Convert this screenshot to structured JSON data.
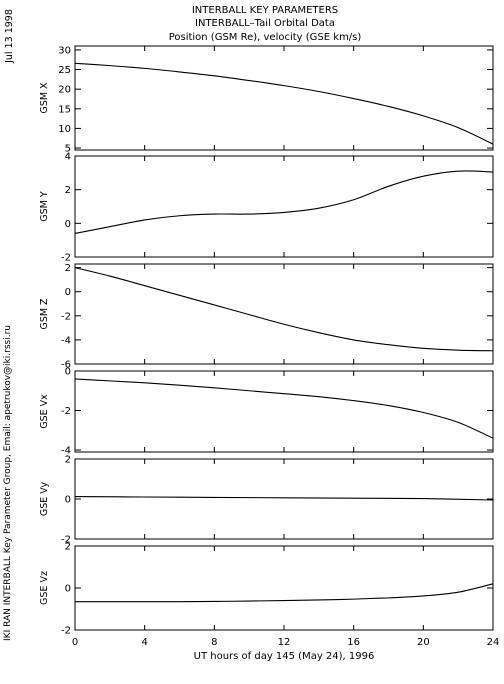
{
  "title_lines": [
    "INTERBALL KEY PARAMETERS",
    "INTERBALL–Tail Orbital Data",
    "Position (GSM Re), velocity (GSE km/s)"
  ],
  "side_labels": {
    "date": "Jul 13 1998",
    "credit": "IKI RAN INTERBALL Key Parameter Group, Email: apetrukov@iki.rssi.ru"
  },
  "chart_data": {
    "type": "line",
    "xlabel": "UT hours of day 145 (May 24), 1996",
    "xlim": [
      0,
      24
    ],
    "xticks": [
      0,
      4,
      8,
      12,
      16,
      20,
      24
    ],
    "grid": false,
    "panels": [
      {
        "ylabel": "GSM X",
        "ylim": [
          4.5,
          31
        ],
        "yticks": [
          5,
          10,
          15,
          20,
          25,
          30
        ],
        "series": [
          {
            "x": [
              0,
              2,
              4,
              6,
              8,
              10,
              12,
              14,
              16,
              18,
              20,
              22,
              24
            ],
            "y": [
              26.6,
              26.0,
              25.3,
              24.4,
              23.4,
              22.2,
              20.9,
              19.4,
              17.6,
              15.6,
              13.2,
              10.2,
              6.0
            ]
          }
        ]
      },
      {
        "ylabel": "GSM Y",
        "ylim": [
          -2,
          4
        ],
        "yticks": [
          -2,
          0,
          2,
          4
        ],
        "series": [
          {
            "x": [
              0,
              2,
              4,
              6,
              8,
              10,
              12,
              14,
              16,
              18,
              20,
              22,
              24
            ],
            "y": [
              -0.6,
              -0.2,
              0.2,
              0.45,
              0.55,
              0.55,
              0.65,
              0.9,
              1.4,
              2.2,
              2.8,
              3.1,
              3.05
            ]
          }
        ]
      },
      {
        "ylabel": "GSM Z",
        "ylim": [
          -6,
          2.3
        ],
        "yticks": [
          -6,
          -4,
          -2,
          0,
          2
        ],
        "series": [
          {
            "x": [
              0,
              2,
              4,
              6,
              8,
              10,
              12,
              14,
              16,
              18,
              20,
              22,
              24
            ],
            "y": [
              2.0,
              1.3,
              0.5,
              -0.3,
              -1.1,
              -1.9,
              -2.7,
              -3.4,
              -4.0,
              -4.4,
              -4.7,
              -4.85,
              -4.9
            ]
          }
        ]
      },
      {
        "ylabel": "GSE Vx",
        "ylim": [
          -4.1,
          0
        ],
        "yticks": [
          -4,
          -2,
          0
        ],
        "series": [
          {
            "x": [
              0,
              2,
              4,
              6,
              8,
              10,
              12,
              14,
              16,
              18,
              20,
              22,
              24
            ],
            "y": [
              -0.4,
              -0.5,
              -0.6,
              -0.72,
              -0.85,
              -1.0,
              -1.15,
              -1.3,
              -1.5,
              -1.75,
              -2.1,
              -2.6,
              -3.4
            ]
          }
        ]
      },
      {
        "ylabel": "GSE Vy",
        "ylim": [
          -2,
          2
        ],
        "yticks": [
          -2,
          0,
          2
        ],
        "series": [
          {
            "x": [
              0,
              4,
              8,
              12,
              16,
              20,
              24
            ],
            "y": [
              0.12,
              0.1,
              0.08,
              0.06,
              0.04,
              0.02,
              -0.05
            ]
          }
        ]
      },
      {
        "ylabel": "GSE Vz",
        "ylim": [
          -2,
          2
        ],
        "yticks": [
          -2,
          0,
          2
        ],
        "series": [
          {
            "x": [
              0,
              2,
              4,
              6,
              8,
              10,
              12,
              14,
              16,
              18,
              20,
              22,
              24
            ],
            "y": [
              -0.65,
              -0.65,
              -0.65,
              -0.65,
              -0.64,
              -0.62,
              -0.6,
              -0.57,
              -0.53,
              -0.47,
              -0.38,
              -0.2,
              0.2
            ]
          }
        ]
      }
    ]
  }
}
